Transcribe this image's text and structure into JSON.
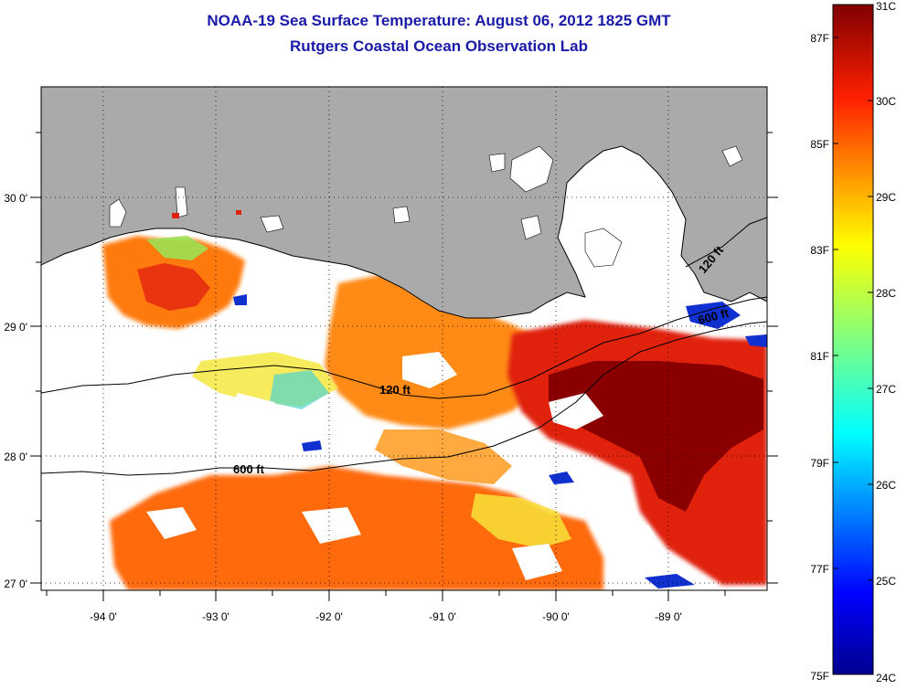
{
  "title": {
    "line1": "NOAA-19 Sea Surface Temperature:  August 06, 2012 1825 GMT",
    "line2": "Rutgers Coastal Ocean Observation Lab"
  },
  "axes": {
    "x_ticks": [
      "-94 0'",
      "-93 0'",
      "-92 0'",
      "-91 0'",
      "-90 0'",
      "-89 0'"
    ],
    "y_ticks": [
      "30 0'",
      "29 0'",
      "28 0'",
      "27 0'"
    ]
  },
  "contours": {
    "labels": [
      "120 ft",
      "600 ft",
      "120 ft",
      "600 ft"
    ]
  },
  "colorbar": {
    "celsius": [
      "31C",
      "30C",
      "29C",
      "28C",
      "27C",
      "26C",
      "25C",
      "24C"
    ],
    "fahrenheit": [
      "87F",
      "85F",
      "83F",
      "81F",
      "79F",
      "77F",
      "75F"
    ]
  },
  "colors": {
    "land": "#aaaaaa",
    "title": "#1a1aa8",
    "cloud": "#ffffff"
  }
}
